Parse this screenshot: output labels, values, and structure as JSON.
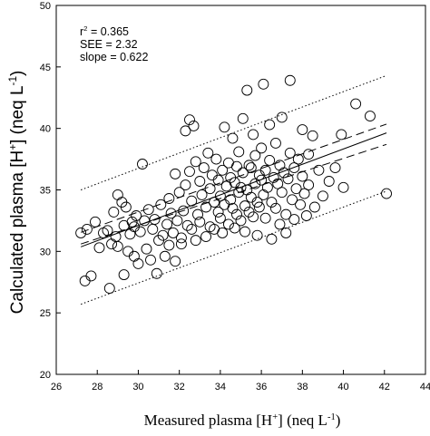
{
  "chart_data": {
    "type": "scatter",
    "title": "",
    "xlabel": {
      "pre": "Measured plasma [H",
      "sup1": "+",
      "mid": "] (neq L",
      "sup2": "-1",
      "post": ")"
    },
    "ylabel": {
      "pre": "Calculated plasma [H",
      "sup1": "+",
      "mid": "] (neq L",
      "sup2": "-1",
      "post": ")"
    },
    "xlim": [
      26,
      44
    ],
    "ylim": [
      20,
      50
    ],
    "x_ticks": [
      26,
      28,
      30,
      32,
      34,
      36,
      38,
      40,
      42,
      44
    ],
    "y_ticks": [
      20,
      25,
      30,
      35,
      40,
      45,
      50
    ],
    "grid": false,
    "annotations": [
      {
        "label": "r",
        "sup": "2",
        "value": " = 0.365"
      },
      {
        "label": "SEE = 2.32"
      },
      {
        "label": "slope = 0.622"
      }
    ],
    "regression": {
      "slope": 0.622,
      "intercept": 13.45,
      "x_range": [
        27.2,
        42.1
      ]
    },
    "confidence_band": {
      "x_start": 27.2,
      "x_end": 42.1,
      "upper": [
        31.55,
        40.35
      ],
      "lower": [
        30.6,
        38.7
      ],
      "style": "dashed"
    },
    "prediction_band": {
      "x_start": 27.2,
      "x_end": 42.1,
      "upper": [
        35.0,
        44.3
      ],
      "lower": [
        25.7,
        34.9
      ],
      "style": "dotted"
    },
    "points": [
      [
        27.2,
        31.5
      ],
      [
        27.4,
        27.6
      ],
      [
        27.5,
        31.8
      ],
      [
        27.7,
        28.0
      ],
      [
        27.9,
        32.4
      ],
      [
        28.1,
        30.3
      ],
      [
        28.3,
        31.5
      ],
      [
        28.5,
        31.7
      ],
      [
        28.6,
        27.0
      ],
      [
        28.7,
        30.6
      ],
      [
        28.8,
        33.2
      ],
      [
        28.9,
        31.2
      ],
      [
        29.0,
        30.4
      ],
      [
        29.0,
        34.6
      ],
      [
        29.2,
        34.0
      ],
      [
        29.3,
        28.1
      ],
      [
        29.3,
        32.1
      ],
      [
        29.4,
        33.6
      ],
      [
        29.5,
        30.0
      ],
      [
        29.6,
        31.4
      ],
      [
        29.7,
        32.4
      ],
      [
        29.8,
        29.6
      ],
      [
        29.8,
        32.0
      ],
      [
        29.9,
        32.9
      ],
      [
        30.0,
        29.0
      ],
      [
        30.1,
        31.6
      ],
      [
        30.2,
        37.1
      ],
      [
        30.3,
        32.5
      ],
      [
        30.4,
        30.2
      ],
      [
        30.5,
        33.4
      ],
      [
        30.6,
        29.3
      ],
      [
        30.7,
        31.8
      ],
      [
        30.8,
        32.6
      ],
      [
        30.9,
        28.2
      ],
      [
        31.0,
        30.9
      ],
      [
        31.1,
        33.8
      ],
      [
        31.2,
        31.3
      ],
      [
        31.3,
        29.6
      ],
      [
        31.4,
        32.2
      ],
      [
        31.5,
        34.3
      ],
      [
        31.5,
        30.5
      ],
      [
        31.6,
        33.1
      ],
      [
        31.7,
        31.5
      ],
      [
        31.8,
        29.2
      ],
      [
        31.8,
        36.3
      ],
      [
        31.9,
        32.5
      ],
      [
        32.0,
        34.8
      ],
      [
        32.1,
        31.1
      ],
      [
        32.1,
        30.6
      ],
      [
        32.2,
        33.3
      ],
      [
        32.3,
        35.4
      ],
      [
        32.3,
        39.8
      ],
      [
        32.4,
        32.1
      ],
      [
        32.5,
        40.7
      ],
      [
        32.5,
        36.5
      ],
      [
        32.6,
        31.8
      ],
      [
        32.6,
        34.1
      ],
      [
        32.7,
        40.2
      ],
      [
        32.8,
        37.3
      ],
      [
        32.8,
        30.9
      ],
      [
        32.9,
        33.0
      ],
      [
        33.0,
        35.7
      ],
      [
        33.0,
        32.4
      ],
      [
        33.1,
        34.6
      ],
      [
        33.2,
        36.8
      ],
      [
        33.3,
        31.2
      ],
      [
        33.3,
        33.6
      ],
      [
        33.4,
        38.0
      ],
      [
        33.5,
        35.1
      ],
      [
        33.5,
        32.0
      ],
      [
        33.6,
        36.2
      ],
      [
        33.7,
        34.0
      ],
      [
        33.7,
        31.8
      ],
      [
        33.8,
        37.5
      ],
      [
        33.9,
        33.2
      ],
      [
        33.9,
        35.8
      ],
      [
        34.0,
        32.7
      ],
      [
        34.0,
        34.5
      ],
      [
        34.1,
        36.6
      ],
      [
        34.1,
        31.5
      ],
      [
        34.2,
        40.1
      ],
      [
        34.2,
        33.8
      ],
      [
        34.3,
        35.3
      ],
      [
        34.4,
        37.2
      ],
      [
        34.4,
        32.2
      ],
      [
        34.5,
        34.2
      ],
      [
        34.5,
        36.0
      ],
      [
        34.6,
        33.5
      ],
      [
        34.6,
        39.2
      ],
      [
        34.7,
        35.6
      ],
      [
        34.7,
        31.9
      ],
      [
        34.8,
        36.9
      ],
      [
        34.8,
        33.0
      ],
      [
        34.9,
        34.8
      ],
      [
        34.9,
        38.1
      ],
      [
        35.0,
        32.5
      ],
      [
        35.0,
        35.2
      ],
      [
        35.1,
        40.8
      ],
      [
        35.1,
        36.4
      ],
      [
        35.2,
        33.7
      ],
      [
        35.2,
        31.6
      ],
      [
        35.3,
        43.1
      ],
      [
        35.3,
        35.0
      ],
      [
        35.4,
        37.0
      ],
      [
        35.4,
        33.2
      ],
      [
        35.5,
        34.4
      ],
      [
        35.5,
        36.8
      ],
      [
        35.6,
        32.8
      ],
      [
        35.6,
        39.5
      ],
      [
        35.7,
        35.5
      ],
      [
        35.7,
        37.8
      ],
      [
        35.8,
        34.0
      ],
      [
        35.8,
        31.3
      ],
      [
        35.9,
        36.2
      ],
      [
        35.9,
        33.6
      ],
      [
        36.0,
        35.8
      ],
      [
        36.0,
        38.4
      ],
      [
        36.1,
        43.6
      ],
      [
        36.1,
        34.6
      ],
      [
        36.2,
        36.6
      ],
      [
        36.2,
        32.7
      ],
      [
        36.3,
        35.2
      ],
      [
        36.4,
        40.3
      ],
      [
        36.4,
        37.4
      ],
      [
        36.5,
        34.0
      ],
      [
        36.5,
        31.0
      ],
      [
        36.6,
        36.0
      ],
      [
        36.7,
        33.5
      ],
      [
        36.7,
        38.8
      ],
      [
        36.8,
        35.5
      ],
      [
        36.9,
        32.2
      ],
      [
        36.9,
        37.0
      ],
      [
        37.0,
        34.8
      ],
      [
        37.0,
        40.9
      ],
      [
        37.1,
        36.4
      ],
      [
        37.2,
        33.0
      ],
      [
        37.2,
        31.5
      ],
      [
        37.3,
        35.9
      ],
      [
        37.4,
        38.0
      ],
      [
        37.4,
        43.9
      ],
      [
        37.5,
        34.2
      ],
      [
        37.6,
        36.8
      ],
      [
        37.6,
        32.6
      ],
      [
        37.7,
        35.1
      ],
      [
        37.8,
        37.5
      ],
      [
        37.9,
        33.8
      ],
      [
        38.0,
        36.1
      ],
      [
        38.0,
        39.9
      ],
      [
        38.1,
        34.7
      ],
      [
        38.2,
        32.9
      ],
      [
        38.3,
        37.9
      ],
      [
        38.3,
        35.4
      ],
      [
        38.5,
        39.4
      ],
      [
        38.6,
        33.6
      ],
      [
        38.8,
        36.6
      ],
      [
        39.0,
        34.5
      ],
      [
        39.3,
        35.7
      ],
      [
        39.6,
        36.8
      ],
      [
        39.9,
        39.5
      ],
      [
        40.0,
        35.2
      ],
      [
        40.6,
        42.0
      ],
      [
        41.3,
        41.0
      ],
      [
        42.1,
        34.7
      ]
    ]
  }
}
